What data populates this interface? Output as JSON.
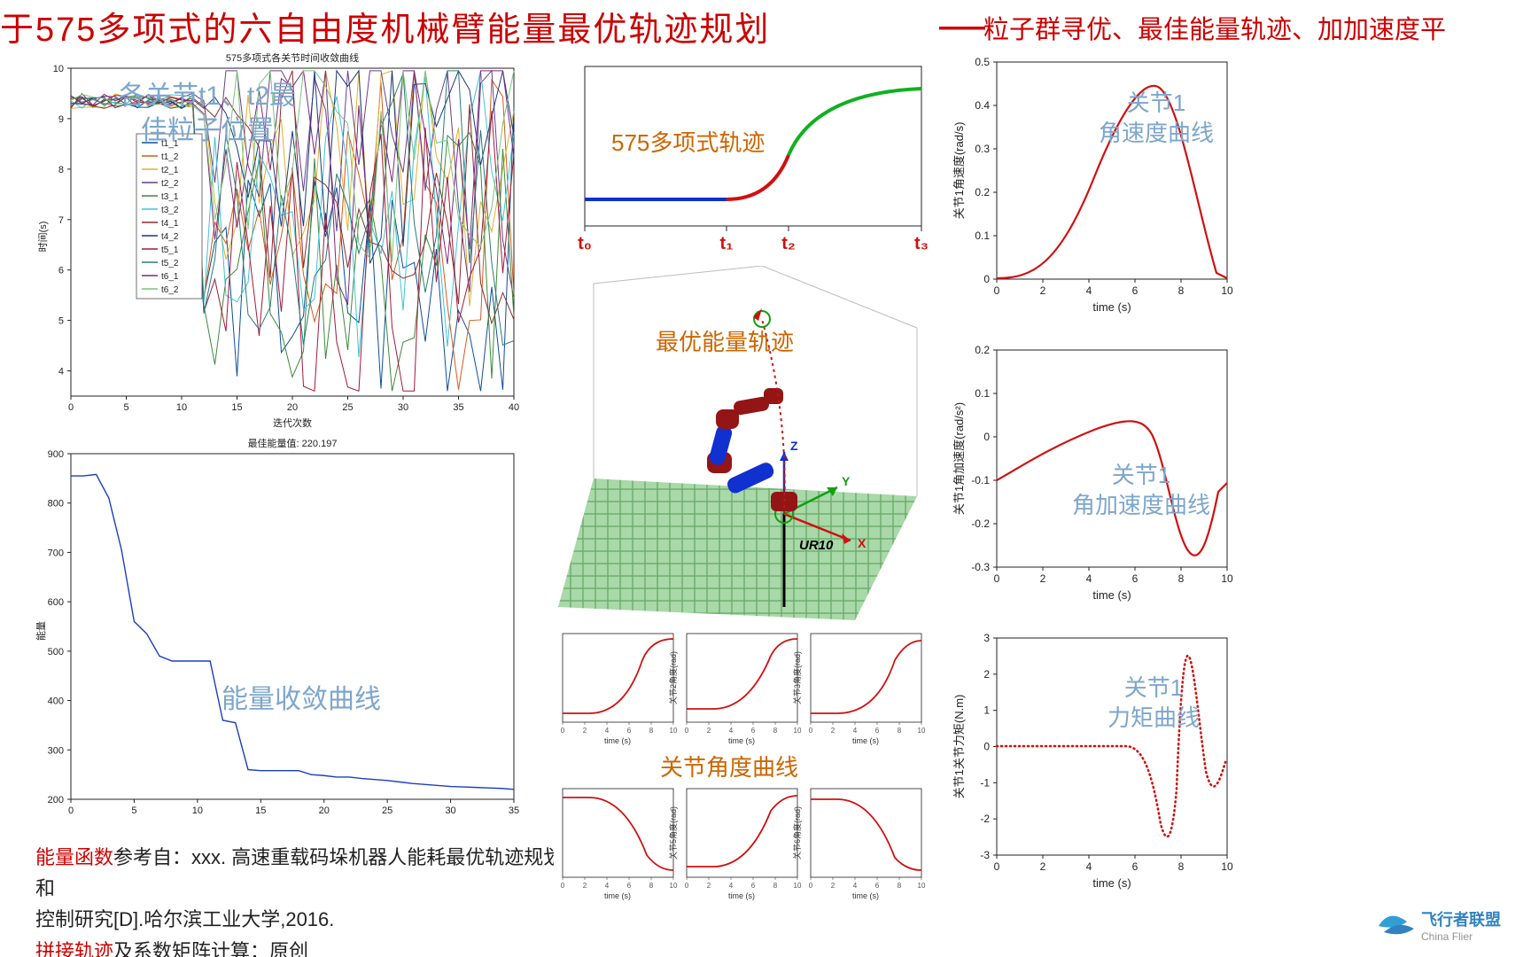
{
  "header": {
    "title_main": "于575多项式的六自由度机械臂能量最优轨迹规划",
    "title_dash": "—",
    "title_sub": "粒子群寻优、最佳能量轨迹、加加速度平",
    "title_color": "#cc0000"
  },
  "charts": {
    "pso": {
      "title": "575多项式各关节时间收敛曲线",
      "overlay_label": "各关节t1、t2最\n佳粒子位置",
      "overlay_color": "#7da6cd",
      "xlabel": "迭代次数",
      "ylabel": "时间(s)",
      "xlim": [
        0,
        40
      ],
      "ylim": [
        3.5,
        10
      ],
      "xticks": [
        0,
        5,
        10,
        15,
        20,
        25,
        30,
        35,
        40
      ],
      "yticks": [
        4,
        5,
        6,
        7,
        8,
        9,
        10
      ],
      "legend": [
        "t1_1",
        "t1_2",
        "t2_1",
        "t2_2",
        "t3_1",
        "t3_2",
        "t4_1",
        "t4_2",
        "t5_1",
        "t5_2",
        "t6_1",
        "t6_2"
      ],
      "series_colors": [
        "#0b4e9b",
        "#d65a1a",
        "#e0b030",
        "#6a3e8a",
        "#3a8a3a",
        "#3bc4d6",
        "#8a2d2d",
        "#1a3a7a",
        "#a01a3a",
        "#2a7a7a",
        "#7a2a7a",
        "#7ac47a"
      ]
    },
    "energy": {
      "title": "最佳能量值: 220.197",
      "overlay_label": "能量收敛曲线",
      "color": "#1a3fbf",
      "xlim": [
        0,
        35
      ],
      "ylim": [
        200,
        900
      ],
      "xticks": [
        0,
        5,
        10,
        15,
        20,
        25,
        30,
        35
      ],
      "yticks": [
        200,
        300,
        400,
        500,
        600,
        700,
        800,
        900
      ],
      "ylabel": "能量",
      "data_x": [
        0,
        1,
        2,
        3,
        4,
        5,
        6,
        7,
        8,
        9,
        10,
        11,
        12,
        13,
        14,
        15,
        16,
        17,
        18,
        19,
        20,
        21,
        22,
        23,
        24,
        25,
        26,
        27,
        28,
        29,
        30,
        31,
        32,
        33,
        34,
        35
      ],
      "data_y": [
        855,
        855,
        858,
        810,
        705,
        560,
        535,
        490,
        480,
        480,
        480,
        480,
        360,
        355,
        260,
        258,
        258,
        258,
        258,
        250,
        248,
        245,
        245,
        242,
        240,
        238,
        235,
        232,
        230,
        228,
        226,
        225,
        224,
        223,
        222,
        220
      ]
    },
    "traj575": {
      "overlay_label": "575多项式轨迹",
      "overlay_color": "#cc6600",
      "colors": {
        "seg1": "#1030d0",
        "seg2": "#d01010",
        "seg3": "#10b020"
      },
      "tick_labels": [
        "t₀",
        "t₁",
        "t₂",
        "t₃"
      ],
      "tick_color": "#d01010"
    },
    "robot3d": {
      "overlay_label": "最优能量轨迹",
      "overlay_color": "#cc6600",
      "model_label": "UR10",
      "axis_labels": [
        "X",
        "Y",
        "Z"
      ],
      "link_color": "#941515",
      "joint_color": "#1030d0",
      "floor_color": "#7ac47a"
    },
    "joint_angles": {
      "overlay_label": "关节角度曲线",
      "overlay_color": "#cc6600",
      "xlabel": "time (s)",
      "color": "#d01010",
      "xlim": [
        0,
        10
      ],
      "panels": 6
    },
    "vel": {
      "overlay_label": "关节1\n角速度曲线",
      "ylabel": "关节1角速度(rad/s)",
      "xlabel": "time (s)",
      "color": "#d01010",
      "xlim": [
        0,
        10
      ],
      "ylim": [
        0,
        0.5
      ],
      "xticks": [
        0,
        2,
        4,
        6,
        8,
        10
      ],
      "yticks": [
        0,
        0.1,
        0.2,
        0.3,
        0.4,
        0.5
      ]
    },
    "acc": {
      "overlay_label": "关节1\n角加速度曲线",
      "ylabel": "关节1角加速度(rad/s²)",
      "xlabel": "time (s)",
      "color": "#d01010",
      "xlim": [
        0,
        10
      ],
      "ylim": [
        -0.3,
        0.2
      ],
      "xticks": [
        0,
        2,
        4,
        6,
        8,
        10
      ],
      "yticks": [
        -0.3,
        -0.2,
        -0.1,
        0,
        0.1,
        0.2
      ]
    },
    "torque": {
      "overlay_label": "关节1\n力矩曲线",
      "ylabel": "关节1关节力矩(N.m)",
      "xlabel": "time (s)",
      "color": "#d01010",
      "xlim": [
        0,
        10
      ],
      "ylim": [
        -3,
        3
      ],
      "xticks": [
        0,
        2,
        4,
        6,
        8,
        10
      ],
      "yticks": [
        -3,
        -2,
        -1,
        0,
        1,
        2,
        3
      ]
    }
  },
  "footer": {
    "line1_red": "能量函数",
    "line1_rest": "参考自：xxx. 高速重载码垛机器人能耗最优轨迹规划和",
    "line2": "控制研究[D].哈尔滨工业大学,2016.",
    "line3_red": "拼接轨迹",
    "line3_rest": "及系数矩阵计算：原创"
  },
  "watermark": {
    "text": "飞行者联盟",
    "sub": "China Flier"
  }
}
